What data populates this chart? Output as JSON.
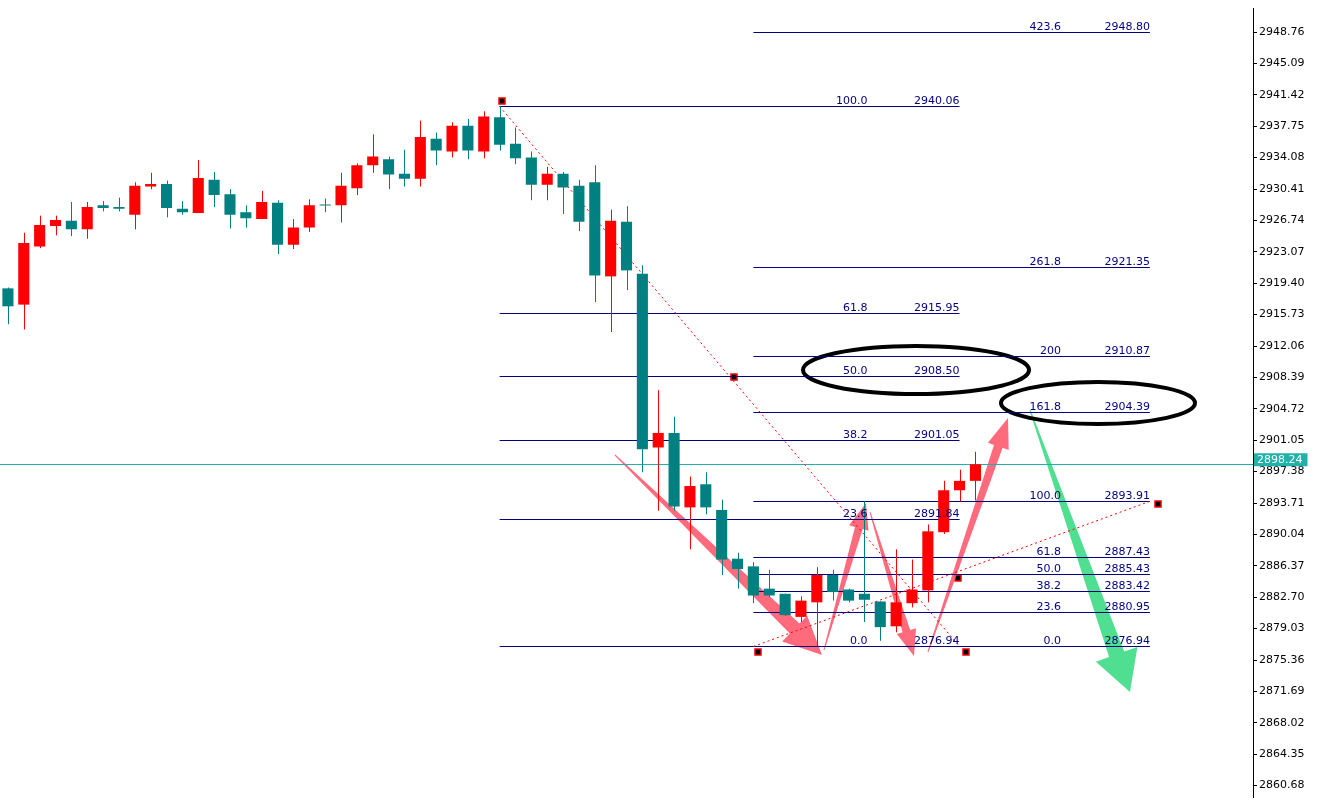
{
  "chart_data": {
    "type": "candlestick",
    "categories": [
      null,
      null,
      null,
      null,
      null,
      null,
      null,
      null,
      null,
      null,
      null,
      null,
      null,
      null,
      null,
      null,
      null,
      null,
      null,
      null,
      null,
      null,
      null,
      null,
      null,
      null,
      null,
      null,
      null,
      null,
      null,
      null,
      null,
      null,
      null,
      null,
      null,
      null,
      null,
      null,
      null,
      null,
      null,
      null,
      null,
      null,
      null,
      null,
      null,
      null,
      null,
      null,
      null,
      null,
      null,
      null,
      null,
      null,
      null,
      null,
      null,
      null,
      null,
      null,
      null,
      null,
      null,
      null,
      null,
      null,
      null,
      null,
      null,
      null,
      null,
      null,
      null,
      null,
      null
    ],
    "ohlc": [
      [
        2918.8,
        2918.9,
        2914.6,
        2916.7
      ],
      [
        2916.9,
        2925.3,
        2914.0,
        2924.1
      ],
      [
        2923.7,
        2927.3,
        2923.5,
        2926.2
      ],
      [
        2926.1,
        2927.3,
        2925.0,
        2926.8
      ],
      [
        2926.7,
        2928.9,
        2924.9,
        2925.7
      ],
      [
        2925.7,
        2928.9,
        2924.6,
        2928.3
      ],
      [
        2928.5,
        2929.0,
        2927.8,
        2928.2
      ],
      [
        2928.3,
        2929.4,
        2927.8,
        2928.1
      ],
      [
        2927.4,
        2931.2,
        2925.7,
        2930.8
      ],
      [
        2930.7,
        2932.3,
        2930.4,
        2931.0
      ],
      [
        2931.0,
        2931.4,
        2927.1,
        2928.2
      ],
      [
        2928.1,
        2929.0,
        2927.4,
        2927.7
      ],
      [
        2927.6,
        2933.8,
        2927.6,
        2931.7
      ],
      [
        2931.5,
        2932.4,
        2928.3,
        2929.7
      ],
      [
        2929.8,
        2930.4,
        2925.8,
        2927.4
      ],
      [
        2927.7,
        2928.5,
        2925.9,
        2927.0
      ],
      [
        2926.9,
        2930.2,
        2926.9,
        2928.9
      ],
      [
        2928.8,
        2929.1,
        2922.8,
        2923.9
      ],
      [
        2923.9,
        2926.9,
        2923.4,
        2925.9
      ],
      [
        2925.9,
        2929.2,
        2925.4,
        2928.5
      ],
      [
        2928.6,
        2929.3,
        2927.7,
        2928.5
      ],
      [
        2928.5,
        2932.3,
        2926.5,
        2930.8
      ],
      [
        2930.5,
        2933.4,
        2929.7,
        2933.2
      ],
      [
        2933.2,
        2936.8,
        2932.3,
        2934.2
      ],
      [
        2933.9,
        2934.2,
        2930.4,
        2932.1
      ],
      [
        2932.2,
        2935.0,
        2930.7,
        2931.6
      ],
      [
        2931.6,
        2938.4,
        2930.7,
        2936.5
      ],
      [
        2936.3,
        2937.0,
        2933.2,
        2934.9
      ],
      [
        2934.8,
        2938.2,
        2934.1,
        2937.8
      ],
      [
        2937.8,
        2938.6,
        2933.9,
        2934.9
      ],
      [
        2934.8,
        2939.5,
        2934.0,
        2938.9
      ],
      [
        2938.8,
        2940.06,
        2934.9,
        2935.6
      ],
      [
        2935.7,
        2937.6,
        2933.3,
        2934.0
      ],
      [
        2934.1,
        2934.8,
        2929.1,
        2930.9
      ],
      [
        2930.9,
        2933.0,
        2929.1,
        2932.2
      ],
      [
        2932.2,
        2932.4,
        2927.5,
        2930.6
      ],
      [
        2930.8,
        2931.5,
        2925.5,
        2926.6
      ],
      [
        2931.2,
        2933.2,
        2917.2,
        2920.3
      ],
      [
        2920.2,
        2928.0,
        2913.7,
        2926.7
      ],
      [
        2926.6,
        2928.4,
        2918.6,
        2920.9
      ],
      [
        2920.5,
        2921.5,
        2897.3,
        2900.0
      ],
      [
        2900.2,
        2906.9,
        2892.8,
        2901.9
      ],
      [
        2901.9,
        2903.8,
        2892.8,
        2893.3
      ],
      [
        2893.2,
        2896.8,
        2888.3,
        2895.7
      ],
      [
        2895.9,
        2897.3,
        2892.4,
        2893.2
      ],
      [
        2892.9,
        2894.1,
        2885.3,
        2887.1
      ],
      [
        2887.2,
        2887.9,
        2883.7,
        2886.0
      ],
      [
        2886.3,
        2886.8,
        2882.0,
        2882.9
      ],
      [
        2883.7,
        2885.9,
        2882.7,
        2882.9
      ],
      [
        2883.1,
        2883.1,
        2880.5,
        2880.6
      ],
      [
        2880.4,
        2882.8,
        2879.8,
        2882.3
      ],
      [
        2882.1,
        2886.2,
        2876.94,
        2885.3
      ],
      [
        2885.3,
        2885.9,
        2882.3,
        2883.3
      ],
      [
        2883.6,
        2883.7,
        2882.1,
        2882.3
      ],
      [
        2883.1,
        2893.91,
        2879.8,
        2882.4
      ],
      [
        2882.2,
        2882.2,
        2877.6,
        2879.2
      ],
      [
        2879.3,
        2888.3,
        2878.6,
        2882.1
      ],
      [
        2882.0,
        2887.1,
        2881.5,
        2883.6
      ],
      [
        2883.5,
        2891.2,
        2882.1,
        2890.4
      ],
      [
        2890.3,
        2896.3,
        2890.1,
        2895.2
      ],
      [
        2895.2,
        2897.6,
        2893.9,
        2896.3
      ],
      [
        2896.3,
        2899.7,
        2894.0,
        2898.24
      ],
      null,
      null,
      null,
      null,
      null,
      null,
      null,
      null,
      null,
      null,
      null,
      null,
      null,
      null,
      null,
      null,
      null
    ],
    "colors": [
      "#008080",
      "#ff0000",
      "#ff0000",
      "#ff0000",
      "#008080",
      "#ff0000",
      "#008080",
      "#008080",
      "#ff0000",
      "#ff0000",
      "#008080",
      "#008080",
      "#ff0000",
      "#008080",
      "#008080",
      "#008080",
      "#ff0000",
      "#008080",
      "#ff0000",
      "#ff0000",
      "#008080",
      "#ff0000",
      "#ff0000",
      "#ff0000",
      "#008080",
      "#008080",
      "#ff0000",
      "#008080",
      "#ff0000",
      "#008080",
      "#ff0000",
      "#008080",
      "#008080",
      "#008080",
      "#ff0000",
      "#008080",
      "#008080",
      "#008080",
      "#ff0000",
      "#008080",
      "#008080",
      "#ff0000",
      "#008080",
      "#ff0000",
      "#008080",
      "#008080",
      "#008080",
      "#008080",
      "#008080",
      "#008080",
      "#ff0000",
      "#ff0000",
      "#008080",
      "#008080",
      "#008080",
      "#008080",
      "#ff0000",
      "#ff0000",
      "#ff0000",
      "#ff0000",
      "#ff0000",
      "#ff0000",
      null,
      null,
      null,
      null,
      null,
      null,
      null,
      null,
      null,
      null,
      null,
      null,
      null,
      null,
      null,
      null,
      null
    ],
    "ref_lines": [
      {
        "axis": "y",
        "value": 2940.06,
        "label": "2940.06",
        "color": "#000080"
      },
      {
        "axis": "y",
        "value": 2915.95,
        "label": "2915.95",
        "color": "#000080"
      },
      {
        "axis": "y",
        "value": 2908.5,
        "label": "2908.50",
        "color": "#000080"
      },
      {
        "axis": "y",
        "value": 2901.05,
        "label": "2901.05",
        "color": "#000080"
      },
      {
        "axis": "y",
        "value": 2891.84,
        "label": "2891.84",
        "color": "#000080"
      },
      {
        "axis": "y",
        "value": 2876.94,
        "label": "2876.94",
        "color": "#000080"
      },
      {
        "axis": "y",
        "value": 2948.8,
        "label": "2948.80",
        "color": "#000080"
      },
      {
        "axis": "y",
        "value": 2921.35,
        "label": "2921.35",
        "color": "#000080"
      },
      {
        "axis": "y",
        "value": 2910.87,
        "label": "2910.87",
        "color": "#000080"
      },
      {
        "axis": "y",
        "value": 2904.39,
        "label": "2904.39",
        "color": "#000080"
      },
      {
        "axis": "y",
        "value": 2893.91,
        "label": "2893.91",
        "color": "#000080"
      },
      {
        "axis": "y",
        "value": 2887.43,
        "label": "2887.43",
        "color": "#000080"
      },
      {
        "axis": "y",
        "value": 2885.43,
        "label": "2885.43",
        "color": "#000080"
      },
      {
        "axis": "y",
        "value": 2883.42,
        "label": "2883.42",
        "color": "#000080"
      },
      {
        "axis": "y",
        "value": 2880.95,
        "label": "2880.95",
        "color": "#000080"
      },
      {
        "axis": "y",
        "value": 2898.24,
        "label": "2898.24",
        "color": "#20b2aa"
      }
    ],
    "annotations": [
      {
        "text": "100.0",
        "y": 2940.06
      },
      {
        "text": "61.8",
        "y": 2915.95
      },
      {
        "text": "50.0",
        "y": 2908.5
      },
      {
        "text": "38.2",
        "y": 2901.05
      },
      {
        "text": "23.6",
        "y": 2891.84
      },
      {
        "text": "0.0",
        "y": 2876.94
      },
      {
        "text": "423.6",
        "y": 2948.8
      },
      {
        "text": "261.8",
        "y": 2921.35
      },
      {
        "text": "200",
        "y": 2910.87
      },
      {
        "text": "161.8",
        "y": 2904.39
      },
      {
        "text": "100.0",
        "y": 2893.91
      },
      {
        "text": "61.8",
        "y": 2887.43
      },
      {
        "text": "50.0",
        "y": 2885.43
      },
      {
        "text": "38.2",
        "y": 2883.42
      },
      {
        "text": "23.6",
        "y": 2880.95
      },
      {
        "text": "0.0",
        "y": 2876.94
      },
      {
        "text": "2876.94",
        "y": 2876.94
      }
    ],
    "ylim": [
      2859.3,
      2951.5
    ],
    "yticks": [
      2948.76,
      2945.09,
      2941.42,
      2937.75,
      2934.08,
      2930.41,
      2926.74,
      2923.07,
      {
        "value": 2919.4,
        "label": "2919.40"
      },
      2915.73,
      2912.06,
      2908.39,
      2904.72,
      2901.05,
      2897.38,
      2893.71,
      2890.04,
      2886.37,
      {
        "value": 2882.7,
        "label": "2882.70"
      },
      2879.03,
      2875.36,
      2871.69,
      2868.02,
      2864.35,
      2860.68
    ],
    "tick_labels": "y"
  }
}
